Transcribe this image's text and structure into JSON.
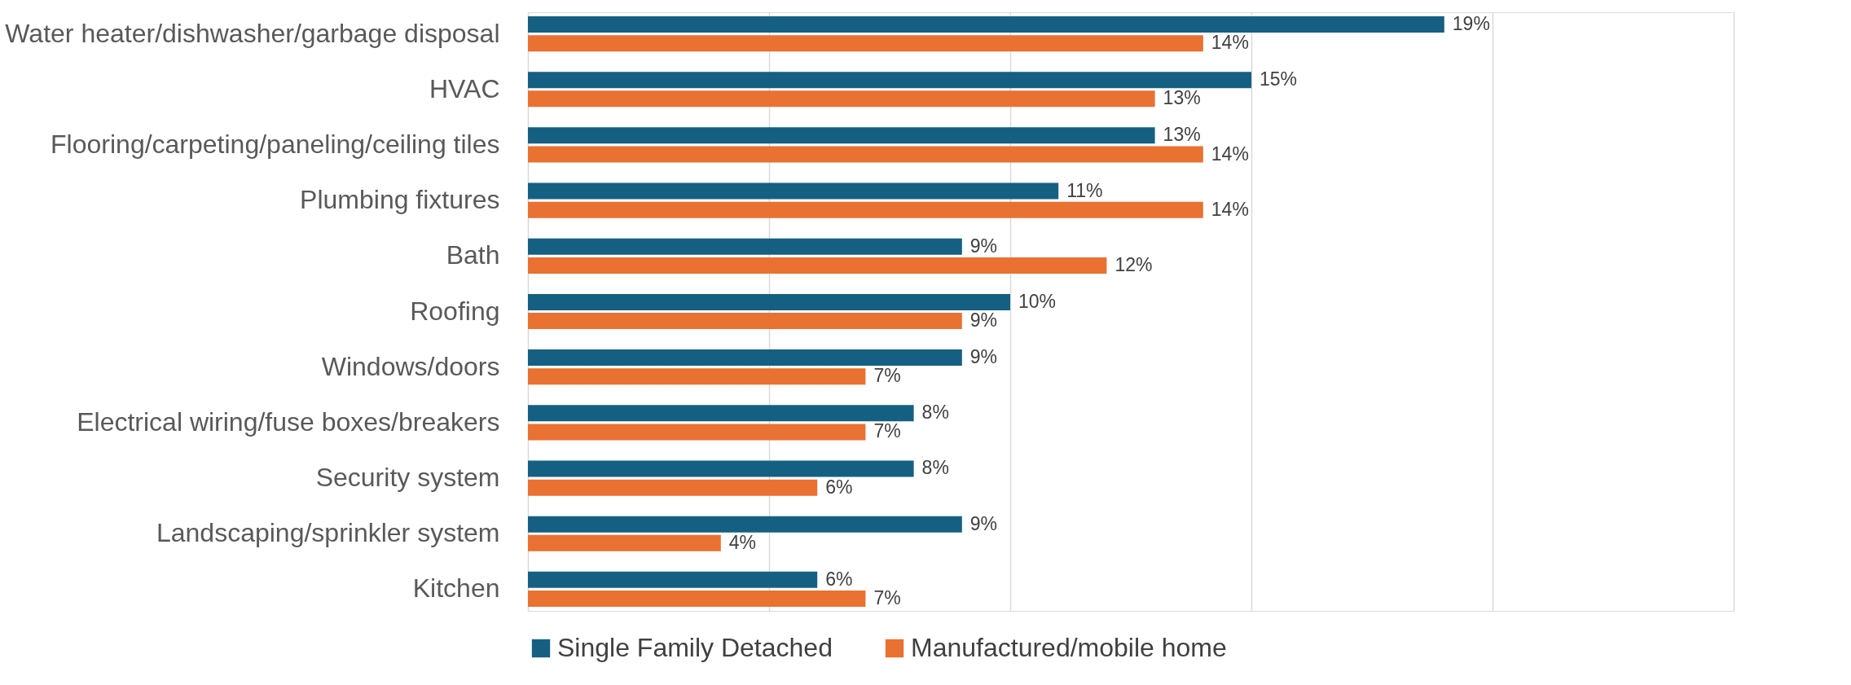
{
  "chart_data": {
    "type": "bar",
    "orientation": "horizontal",
    "categories": [
      "Water heater/dishwasher/garbage disposal",
      "HVAC",
      "Flooring/carpeting/paneling/ceiling tiles",
      "Plumbing fixtures",
      "Bath",
      "Roofing",
      "Windows/doors",
      "Electrical wiring/fuse boxes/breakers",
      "Security system",
      "Landscaping/sprinkler system",
      "Kitchen"
    ],
    "series": [
      {
        "name": "Single Family Detached",
        "color": "#156082",
        "values": [
          19,
          15,
          13,
          11,
          9,
          10,
          9,
          8,
          8,
          9,
          6
        ],
        "value_labels": [
          "19%",
          "15%",
          "13%",
          "11%",
          "9%",
          "10%",
          "9%",
          "8%",
          "8%",
          "9%",
          "6%"
        ]
      },
      {
        "name": "Manufactured/mobile home",
        "color": "#e97132",
        "values": [
          14,
          13,
          14,
          14,
          12,
          9,
          7,
          7,
          6,
          4,
          7
        ],
        "value_labels": [
          "14%",
          "13%",
          "14%",
          "14%",
          "12%",
          "9%",
          "7%",
          "7%",
          "6%",
          "4%",
          "7%"
        ]
      }
    ],
    "xlim": [
      0,
      25
    ],
    "xticks": [
      0,
      5,
      10,
      15,
      20,
      25
    ],
    "grid": "x",
    "legend": "bottom",
    "tick_labels": "y"
  }
}
